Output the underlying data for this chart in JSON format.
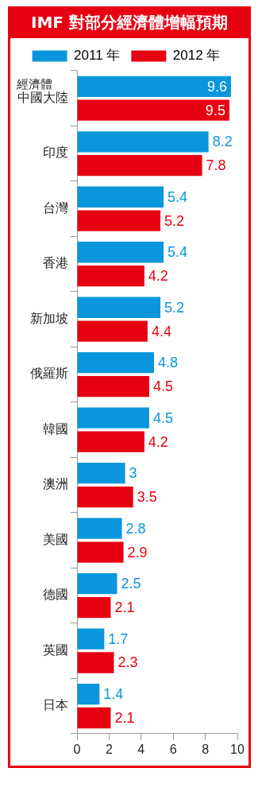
{
  "chart_data": {
    "type": "bar",
    "orientation": "horizontal",
    "title": "IMF 對部分經濟體增幅預期",
    "ylabel": "經濟體",
    "categories": [
      "中國大陸",
      "印度",
      "台灣",
      "香港",
      "新加坡",
      "俄羅斯",
      "韓國",
      "澳洲",
      "美國",
      "德國",
      "英國",
      "日本"
    ],
    "series": [
      {
        "name": "2011 年",
        "color": "#0a96dc",
        "values": [
          9.6,
          8.2,
          5.4,
          5.4,
          5.2,
          4.8,
          4.5,
          3,
          2.8,
          2.5,
          1.7,
          1.4
        ]
      },
      {
        "name": "2012 年",
        "color": "#e60012",
        "values": [
          9.5,
          7.8,
          5.2,
          4.2,
          4.4,
          4.5,
          4.2,
          3.5,
          2.9,
          2.1,
          2.3,
          2.1
        ]
      }
    ],
    "xlim": [
      0,
      10
    ],
    "xticks": [
      0,
      2,
      4,
      6,
      8,
      10
    ],
    "grid": false,
    "legend": "top",
    "data_labels": true
  }
}
